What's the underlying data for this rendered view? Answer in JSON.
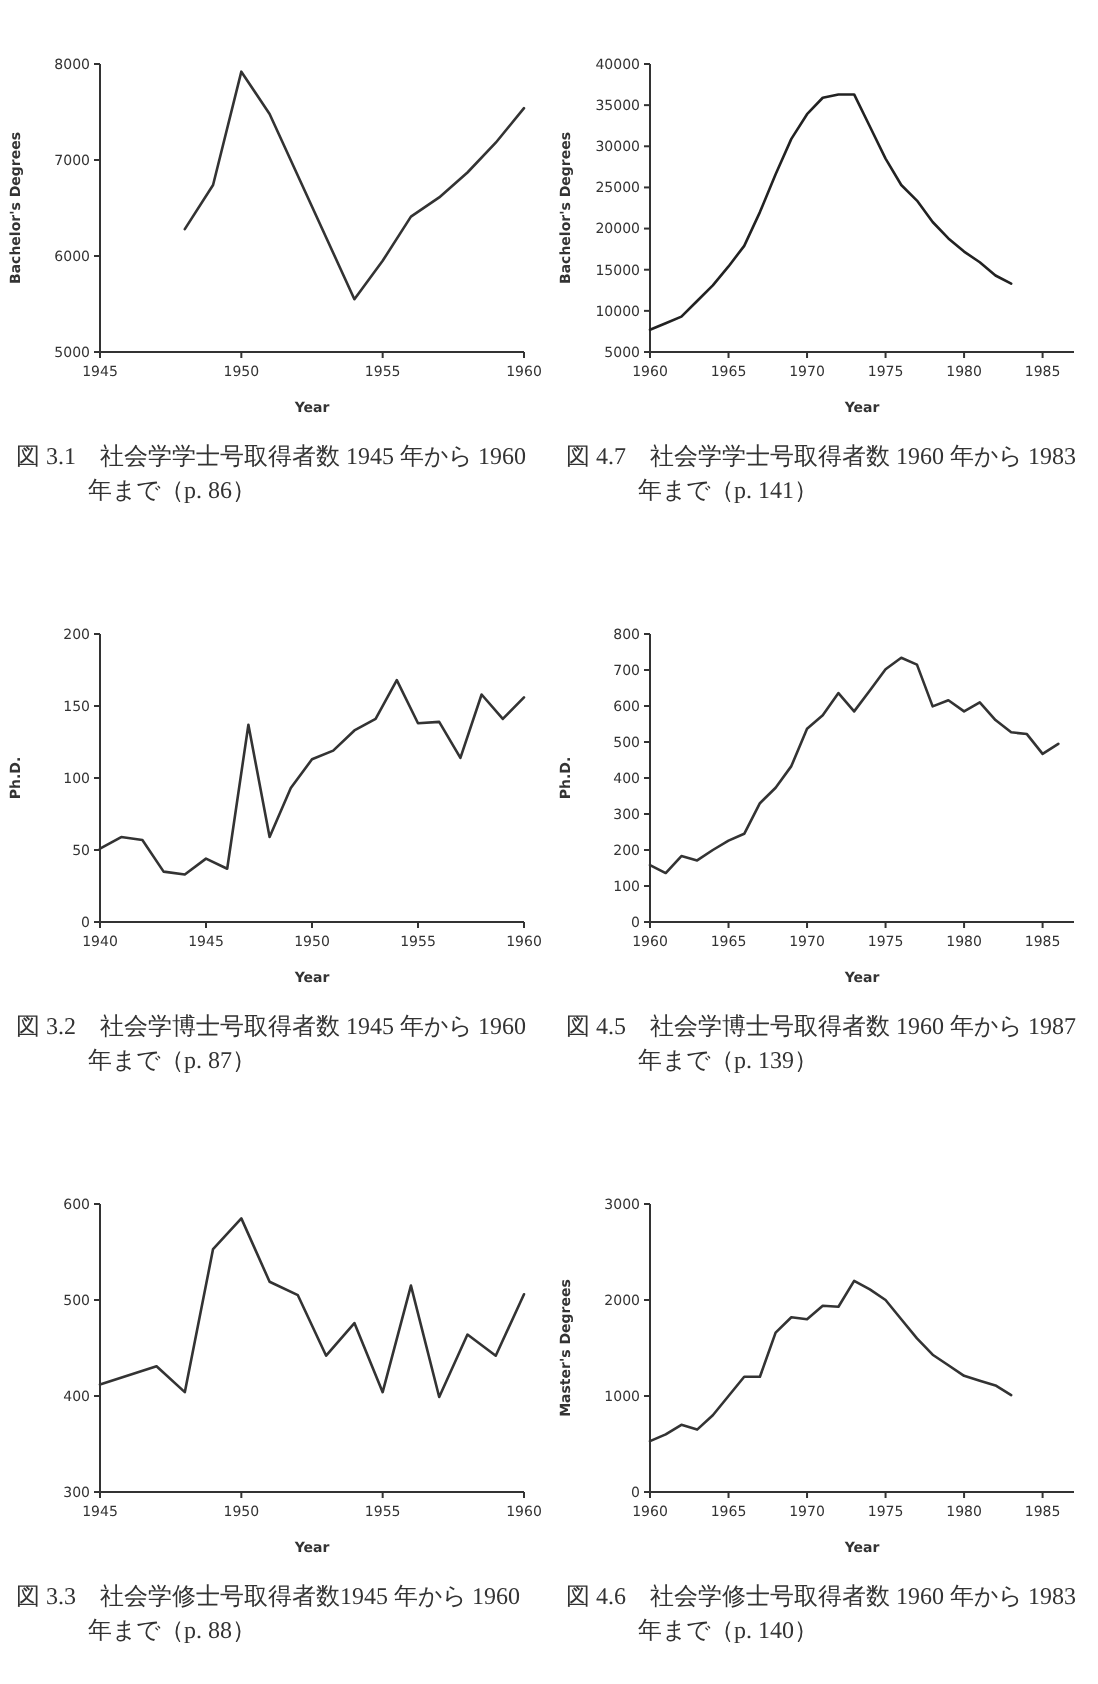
{
  "chart_data": [
    {
      "type": "line",
      "title": "図 3.1　社会学学士号取得者数 1945 年から 1960 年まで（p. 86）",
      "xlabel": "Year",
      "ylabel": "Bachelor's Degrees",
      "color": "#333333",
      "x": [
        1948,
        1949,
        1950,
        1951,
        1954,
        1955,
        1956,
        1957,
        1958,
        1959,
        1960
      ],
      "values": [
        6280,
        6740,
        7920,
        7480,
        5550,
        5950,
        6410,
        6610,
        6870,
        7180,
        7540
      ],
      "xlim": [
        1945,
        1960
      ],
      "ylim": [
        5000,
        8000
      ],
      "xticks": [
        1945,
        1950,
        1955,
        1960
      ],
      "yticks": [
        5000,
        6000,
        7000,
        8000
      ]
    },
    {
      "type": "line",
      "title": "図 4.7　社会学学士号取得者数 1960 年から 1983 年まで（p. 141）",
      "xlabel": "Year",
      "ylabel": "Bachelor's Degrees",
      "color": "#222222",
      "x": [
        1960,
        1961,
        1962,
        1963,
        1964,
        1965,
        1966,
        1967,
        1968,
        1969,
        1970,
        1971,
        1972,
        1973,
        1974,
        1975,
        1976,
        1977,
        1978,
        1979,
        1980,
        1981,
        1982,
        1983
      ],
      "values": [
        7700,
        8500,
        9300,
        11200,
        13100,
        15400,
        17900,
        22000,
        26600,
        30900,
        33900,
        35900,
        36300,
        36300,
        32400,
        28500,
        25300,
        23400,
        20800,
        18800,
        17200,
        15900,
        14300,
        13300
      ],
      "xlim": [
        1960,
        1987
      ],
      "ylim": [
        5000,
        40000
      ],
      "xticks": [
        1960,
        1965,
        1970,
        1975,
        1980,
        1985
      ],
      "yticks": [
        5000,
        10000,
        15000,
        20000,
        25000,
        30000,
        35000,
        40000
      ]
    },
    {
      "type": "line",
      "title": "図 3.2　社会学博士号取得者数 1945 年から 1960 年まで（p. 87）",
      "xlabel": "Year",
      "ylabel": "Ph.D.",
      "color": "#333333",
      "x": [
        1940,
        1941,
        1942,
        1943,
        1944,
        1945,
        1946,
        1947,
        1948,
        1949,
        1950,
        1951,
        1952,
        1953,
        1954,
        1955,
        1956,
        1957,
        1958,
        1959,
        1960
      ],
      "values": [
        51,
        59,
        57,
        35,
        33,
        44,
        37,
        137,
        59,
        93,
        113,
        119,
        133,
        141,
        168,
        138,
        139,
        114,
        158,
        141,
        156
      ],
      "xlim": [
        1940,
        1960
      ],
      "ylim": [
        0,
        200
      ],
      "xticks": [
        1940,
        1945,
        1950,
        1955,
        1960
      ],
      "yticks": [
        0,
        50,
        100,
        150,
        200
      ]
    },
    {
      "type": "line",
      "title": "図 4.5　社会学博士号取得者数 1960 年から 1987 年まで（p. 139）",
      "xlabel": "Year",
      "ylabel": "Ph.D.",
      "color": "#333333",
      "x": [
        1960,
        1961,
        1962,
        1963,
        1964,
        1965,
        1966,
        1967,
        1968,
        1969,
        1970,
        1971,
        1972,
        1973,
        1974,
        1975,
        1976,
        1977,
        1978,
        1979,
        1980,
        1981,
        1982,
        1983,
        1984,
        1985,
        1986
      ],
      "values": [
        158,
        136,
        183,
        171,
        200,
        226,
        245,
        330,
        373,
        433,
        537,
        574,
        636,
        585,
        643,
        702,
        734,
        715,
        599,
        616,
        585,
        610,
        561,
        527,
        522,
        467,
        495
      ],
      "xlim": [
        1960,
        1987
      ],
      "ylim": [
        0,
        800
      ],
      "xticks": [
        1960,
        1965,
        1970,
        1975,
        1980,
        1985
      ],
      "yticks": [
        0,
        100,
        200,
        300,
        400,
        500,
        600,
        700,
        800
      ]
    },
    {
      "type": "line",
      "title": "図 3.3　社会学修士号取得者数1945 年から 1960 年まで（p. 88）",
      "xlabel": "Year",
      "color": "#333333",
      "x": [
        1945,
        1947,
        1948,
        1949,
        1950,
        1951,
        1952,
        1953,
        1954,
        1955,
        1956,
        1957,
        1958,
        1959,
        1960
      ],
      "values": [
        412,
        431,
        404,
        553,
        585,
        519,
        505,
        442,
        476,
        404,
        515,
        399,
        464,
        442,
        506
      ],
      "xlim": [
        1945,
        1960
      ],
      "ylim": [
        300,
        600
      ],
      "xticks": [
        1945,
        1950,
        1955,
        1960
      ],
      "yticks": [
        300,
        400,
        500,
        600
      ]
    },
    {
      "type": "line",
      "title": "図 4.6　社会学修士号取得者数 1960 年から 1983 年まで（p. 140）",
      "xlabel": "Year",
      "ylabel": "Master's Degrees",
      "color": "#333333",
      "x": [
        1960,
        1961,
        1962,
        1963,
        1964,
        1965,
        1966,
        1967,
        1968,
        1969,
        1970,
        1971,
        1972,
        1973,
        1974,
        1975,
        1976,
        1977,
        1978,
        1979,
        1980,
        1981,
        1982,
        1983
      ],
      "values": [
        530,
        600,
        700,
        650,
        800,
        1000,
        1200,
        1200,
        1660,
        1820,
        1800,
        1940,
        1930,
        2200,
        2110,
        2000,
        1800,
        1600,
        1430,
        1320,
        1210,
        1160,
        1110,
        1010
      ],
      "xlim": [
        1960,
        1987
      ],
      "ylim": [
        0,
        3000
      ],
      "xticks": [
        1960,
        1965,
        1970,
        1975,
        1980,
        1985
      ],
      "yticks": [
        0,
        1000,
        2000,
        3000
      ]
    }
  ]
}
